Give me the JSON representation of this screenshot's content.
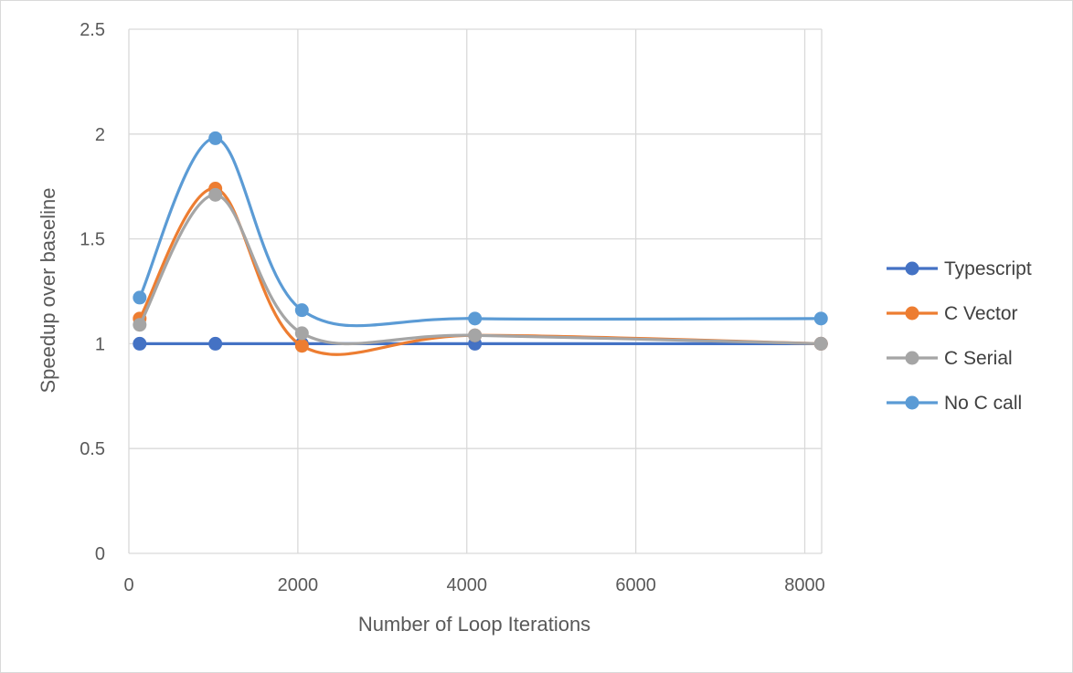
{
  "chart_data": {
    "type": "scatter",
    "title": "",
    "xlabel": "Number of Loop Iterations",
    "ylabel": "Speedup over baseline",
    "xlim": [
      0,
      8200
    ],
    "ylim": [
      0,
      2.5
    ],
    "x_ticks": [
      0,
      2000,
      4000,
      6000,
      8000
    ],
    "y_ticks": [
      0,
      0.5,
      1,
      1.5,
      2,
      2.5
    ],
    "x_tick_labels": [
      "0",
      "2000",
      "4000",
      "6000",
      "8000"
    ],
    "y_tick_labels": [
      "0",
      "0.5",
      "1",
      "1.5",
      "2",
      "2.5"
    ],
    "grid": true,
    "legend_position": "right",
    "line_style": "smoothed",
    "x": [
      128,
      1024,
      2048,
      4096,
      8192
    ],
    "series": [
      {
        "name": "Typescript",
        "color": "#4472C4",
        "values": [
          1.0,
          1.0,
          1.0,
          1.0,
          1.0
        ]
      },
      {
        "name": "C Vector",
        "color": "#ED7D31",
        "values": [
          1.12,
          1.74,
          0.99,
          1.04,
          1.0
        ]
      },
      {
        "name": "C Serial",
        "color": "#A5A5A5",
        "values": [
          1.09,
          1.71,
          1.05,
          1.04,
          1.0
        ]
      },
      {
        "name": "No C call",
        "color": "#5B9BD5",
        "values": [
          1.22,
          1.98,
          1.16,
          1.12,
          1.12
        ]
      }
    ]
  }
}
